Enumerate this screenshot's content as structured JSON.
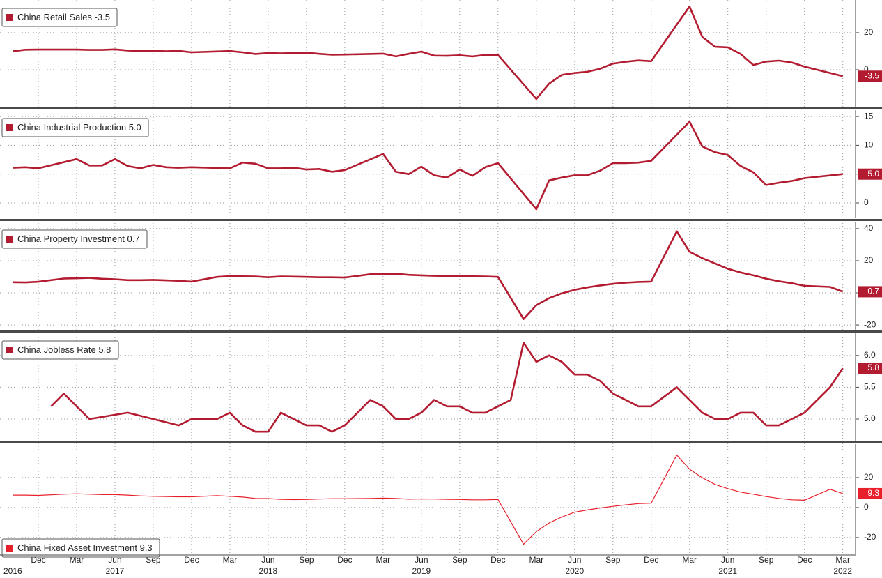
{
  "chart_data": [
    {
      "type": "line",
      "legend": "upper left",
      "grid": true,
      "x": [
        "2016-10",
        "2016-11",
        "2016-12",
        "2017-03",
        "2017-04",
        "2017-05",
        "2017-06",
        "2017-07",
        "2017-08",
        "2017-09",
        "2017-10",
        "2017-11",
        "2017-12",
        "2018-03",
        "2018-04",
        "2018-05",
        "2018-06",
        "2018-07",
        "2018-08",
        "2018-09",
        "2018-10",
        "2018-11",
        "2018-12",
        "2019-03",
        "2019-04",
        "2019-05",
        "2019-06",
        "2019-07",
        "2019-08",
        "2019-09",
        "2019-10",
        "2019-11",
        "2019-12",
        "2020-03",
        "2020-04",
        "2020-05",
        "2020-06",
        "2020-07",
        "2020-08",
        "2020-09",
        "2020-10",
        "2020-11",
        "2020-12",
        "2021-03",
        "2021-04",
        "2021-05",
        "2021-06",
        "2021-07",
        "2021-08",
        "2021-09",
        "2021-10",
        "2021-11",
        "2021-12",
        "2022-03"
      ],
      "series": [
        {
          "name": "China Retail Sales -3.5",
          "color": "#b31b30",
          "values": [
            10.0,
            10.8,
            10.9,
            10.9,
            10.7,
            10.7,
            11.0,
            10.4,
            10.1,
            10.3,
            10.0,
            10.2,
            9.4,
            10.1,
            9.4,
            8.5,
            9.0,
            8.8,
            9.0,
            9.2,
            8.6,
            8.1,
            8.2,
            8.7,
            7.2,
            8.6,
            9.8,
            7.6,
            7.5,
            7.8,
            7.2,
            8.0,
            8.0,
            -15.8,
            -7.5,
            -2.8,
            -1.8,
            -1.1,
            0.5,
            3.3,
            4.3,
            5.0,
            4.6,
            34.2,
            17.7,
            12.4,
            12.1,
            8.5,
            2.5,
            4.4,
            4.9,
            3.9,
            1.7,
            -3.5
          ]
        }
      ],
      "ylim": [
        -20,
        37.7
      ],
      "yticks": [
        0,
        20
      ]
    },
    {
      "type": "line",
      "legend": "upper left",
      "grid": true,
      "x": [
        "2016-10",
        "2016-11",
        "2016-12",
        "2017-03",
        "2017-04",
        "2017-05",
        "2017-06",
        "2017-07",
        "2017-08",
        "2017-09",
        "2017-10",
        "2017-11",
        "2017-12",
        "2018-03",
        "2018-04",
        "2018-05",
        "2018-06",
        "2018-07",
        "2018-08",
        "2018-09",
        "2018-10",
        "2018-11",
        "2018-12",
        "2019-03",
        "2019-04",
        "2019-05",
        "2019-06",
        "2019-07",
        "2019-08",
        "2019-09",
        "2019-10",
        "2019-11",
        "2019-12",
        "2020-03",
        "2020-04",
        "2020-05",
        "2020-06",
        "2020-07",
        "2020-08",
        "2020-09",
        "2020-10",
        "2020-11",
        "2020-12",
        "2021-03",
        "2021-04",
        "2021-05",
        "2021-06",
        "2021-07",
        "2021-08",
        "2021-09",
        "2021-10",
        "2021-11",
        "2021-12",
        "2022-03"
      ],
      "series": [
        {
          "name": "China Industrial Production 5.0",
          "color": "#b31b30",
          "values": [
            6.1,
            6.2,
            6.0,
            7.6,
            6.5,
            6.5,
            7.6,
            6.4,
            6.0,
            6.6,
            6.2,
            6.1,
            6.2,
            6.0,
            7.0,
            6.8,
            6.0,
            6.0,
            6.1,
            5.8,
            5.9,
            5.4,
            5.7,
            8.5,
            5.4,
            5.0,
            6.3,
            4.8,
            4.4,
            5.8,
            4.7,
            6.2,
            6.9,
            -1.1,
            3.9,
            4.4,
            4.8,
            4.8,
            5.6,
            6.9,
            6.9,
            7.0,
            7.3,
            14.1,
            9.8,
            8.8,
            8.3,
            6.4,
            5.3,
            3.1,
            3.5,
            3.8,
            4.3,
            5.0
          ],
          "value_labels": [
            null,
            null,
            null,
            null,
            null,
            null,
            null,
            null,
            null,
            null,
            null,
            null,
            null,
            null,
            null,
            null,
            null,
            null,
            null,
            null,
            null,
            null,
            null,
            null,
            null,
            null,
            null,
            null,
            null,
            null,
            null,
            null,
            null,
            null,
            null,
            null,
            null,
            null,
            null,
            null,
            null,
            null,
            null,
            null,
            null,
            null,
            null,
            null,
            null,
            null,
            null,
            null,
            null,
            "5.0"
          ]
        }
      ],
      "ylim": [
        -2.66,
        16.1
      ],
      "yticks": [
        0,
        5,
        10,
        15
      ]
    },
    {
      "type": "line",
      "legend": "upper left",
      "grid": true,
      "x": [
        "2016-10",
        "2016-11",
        "2016-12",
        "2017-02",
        "2017-03",
        "2017-04",
        "2017-05",
        "2017-06",
        "2017-07",
        "2017-08",
        "2017-09",
        "2017-10",
        "2017-11",
        "2017-12",
        "2018-02",
        "2018-03",
        "2018-04",
        "2018-05",
        "2018-06",
        "2018-07",
        "2018-08",
        "2018-09",
        "2018-10",
        "2018-11",
        "2018-12",
        "2019-02",
        "2019-03",
        "2019-04",
        "2019-05",
        "2019-06",
        "2019-07",
        "2019-08",
        "2019-09",
        "2019-10",
        "2019-11",
        "2019-12",
        "2020-02",
        "2020-03",
        "2020-04",
        "2020-05",
        "2020-06",
        "2020-07",
        "2020-08",
        "2020-09",
        "2020-10",
        "2020-11",
        "2020-12",
        "2021-02",
        "2021-03",
        "2021-04",
        "2021-05",
        "2021-06",
        "2021-07",
        "2021-08",
        "2021-09",
        "2021-10",
        "2021-11",
        "2021-12",
        "2022-02",
        "2022-03"
      ],
      "series": [
        {
          "name": "China Property Investment 0.7",
          "color": "#b31b30",
          "values": [
            6.6,
            6.5,
            6.9,
            8.9,
            9.1,
            9.3,
            8.8,
            8.5,
            7.9,
            7.9,
            8.1,
            7.8,
            7.5,
            7.0,
            9.9,
            10.4,
            10.3,
            10.2,
            9.7,
            10.2,
            10.1,
            9.9,
            9.7,
            9.7,
            9.5,
            11.6,
            11.8,
            11.9,
            11.2,
            10.9,
            10.6,
            10.5,
            10.5,
            10.3,
            10.2,
            9.9,
            -16.3,
            -7.7,
            -3.3,
            -0.3,
            1.9,
            3.4,
            4.6,
            5.6,
            6.3,
            6.8,
            7.0,
            38.3,
            25.6,
            21.6,
            18.3,
            15.0,
            12.7,
            10.9,
            8.8,
            7.2,
            6.0,
            4.4,
            3.7,
            0.7
          ]
        }
      ],
      "ylim": [
        -23,
        44.3
      ],
      "yticks": [
        -20,
        0,
        20,
        40
      ]
    },
    {
      "type": "line",
      "legend": "upper left",
      "grid": true,
      "x": [
        "2017-01",
        "2017-02",
        "2017-04",
        "2017-07",
        "2017-11",
        "2017-12",
        "2018-01",
        "2018-02",
        "2018-03",
        "2018-04",
        "2018-05",
        "2018-06",
        "2018-07",
        "2018-09",
        "2018-10",
        "2018-11",
        "2018-12",
        "2019-01",
        "2019-02",
        "2019-03",
        "2019-04",
        "2019-05",
        "2019-06",
        "2019-07",
        "2019-08",
        "2019-09",
        "2019-10",
        "2019-11",
        "2019-12",
        "2020-01",
        "2020-02",
        "2020-03",
        "2020-04",
        "2020-05",
        "2020-06",
        "2020-07",
        "2020-08",
        "2020-09",
        "2020-10",
        "2020-11",
        "2020-12",
        "2021-02",
        "2021-03",
        "2021-04",
        "2021-05",
        "2021-06",
        "2021-07",
        "2021-08",
        "2021-09",
        "2021-10",
        "2021-11",
        "2021-12",
        "2022-02",
        "2022-03"
      ],
      "series": [
        {
          "name": "China Jobless Rate 5.8",
          "color": "#b31b30",
          "values": [
            5.2,
            5.4,
            5.0,
            5.1,
            4.9,
            5.0,
            5.0,
            5.0,
            5.1,
            4.9,
            4.8,
            4.8,
            5.1,
            4.9,
            4.9,
            4.8,
            4.9,
            5.1,
            5.3,
            5.2,
            5.0,
            5.0,
            5.1,
            5.3,
            5.2,
            5.2,
            5.1,
            5.1,
            5.2,
            5.3,
            6.2,
            5.9,
            6.0,
            5.9,
            5.7,
            5.7,
            5.6,
            5.4,
            5.3,
            5.2,
            5.2,
            5.5,
            5.3,
            5.1,
            5.0,
            5.0,
            5.1,
            5.1,
            4.9,
            4.9,
            5.0,
            5.1,
            5.5,
            5.8
          ]
        }
      ],
      "ylim": [
        4.66,
        6.36
      ],
      "yticks": [
        {
          "value": 5,
          "label": "5.0"
        },
        5.5,
        {
          "value": 6,
          "label": "6.0"
        }
      ]
    },
    {
      "type": "line",
      "legend": "lower left",
      "grid": true,
      "x": [
        "2016-10",
        "2016-11",
        "2016-12",
        "2017-02",
        "2017-03",
        "2017-04",
        "2017-05",
        "2017-06",
        "2017-07",
        "2017-08",
        "2017-09",
        "2017-10",
        "2017-11",
        "2017-12",
        "2018-02",
        "2018-03",
        "2018-04",
        "2018-05",
        "2018-06",
        "2018-07",
        "2018-08",
        "2018-09",
        "2018-10",
        "2018-11",
        "2018-12",
        "2019-02",
        "2019-03",
        "2019-04",
        "2019-05",
        "2019-06",
        "2019-07",
        "2019-08",
        "2019-09",
        "2019-10",
        "2019-11",
        "2019-12",
        "2020-02",
        "2020-03",
        "2020-04",
        "2020-05",
        "2020-06",
        "2020-07",
        "2020-08",
        "2020-09",
        "2020-10",
        "2020-11",
        "2020-12",
        "2021-02",
        "2021-03",
        "2021-04",
        "2021-05",
        "2021-06",
        "2021-07",
        "2021-08",
        "2021-09",
        "2021-10",
        "2021-11",
        "2021-12",
        "2022-02",
        "2022-03"
      ],
      "series": [
        {
          "name": "China Fixed Asset Investment 9.3",
          "color": "#e8202c",
          "values": [
            8.3,
            8.3,
            8.1,
            8.9,
            9.2,
            8.9,
            8.6,
            8.6,
            8.3,
            7.8,
            7.5,
            7.3,
            7.2,
            7.2,
            7.9,
            7.5,
            7.0,
            6.1,
            6.0,
            5.5,
            5.3,
            5.4,
            5.7,
            5.9,
            5.9,
            6.1,
            6.3,
            6.1,
            5.6,
            5.8,
            5.7,
            5.5,
            5.4,
            5.2,
            5.2,
            5.4,
            -24.5,
            -16.1,
            -10.3,
            -6.3,
            -3.1,
            -1.6,
            -0.3,
            0.8,
            1.8,
            2.6,
            2.9,
            35.0,
            25.6,
            19.9,
            15.4,
            12.6,
            10.3,
            8.9,
            7.3,
            6.1,
            5.2,
            4.9,
            12.2,
            9.3
          ]
        }
      ],
      "ylim": [
        -31.2,
        42.3
      ],
      "yticks": [
        -20,
        0,
        20
      ],
      "xlim": [
        "2016-09",
        "2022-04"
      ],
      "xticks": [
        {
          "value": "2016-12",
          "label": "Dec"
        },
        {
          "value": "2017-03",
          "label": "Mar"
        },
        {
          "value": "2017-06",
          "label": "Jun"
        },
        {
          "value": "2017-09",
          "label": "Sep"
        },
        {
          "value": "2017-12",
          "label": "Dec"
        },
        {
          "value": "2018-03",
          "label": "Mar"
        },
        {
          "value": "2018-06",
          "label": "Jun"
        },
        {
          "value": "2018-09",
          "label": "Sep"
        },
        {
          "value": "2018-12",
          "label": "Dec"
        },
        {
          "value": "2019-03",
          "label": "Mar"
        },
        {
          "value": "2019-06",
          "label": "Jun"
        },
        {
          "value": "2019-09",
          "label": "Sep"
        },
        {
          "value": "2019-12",
          "label": "Dec"
        },
        {
          "value": "2020-03",
          "label": "Mar"
        },
        {
          "value": "2020-06",
          "label": "Jun"
        },
        {
          "value": "2020-09",
          "label": "Sep"
        },
        {
          "value": "2020-12",
          "label": "Dec"
        },
        {
          "value": "2021-03",
          "label": "Mar"
        },
        {
          "value": "2021-06",
          "label": "Jun"
        },
        {
          "value": "2021-09",
          "label": "Sep"
        },
        {
          "value": "2021-12",
          "label": "Dec"
        },
        {
          "value": "2022-03",
          "label": "Mar"
        }
      ],
      "year_ticks": [
        {
          "value": "2016-10",
          "label": "2016"
        },
        {
          "value": "2017-06",
          "label": "2017"
        },
        {
          "value": "2018-06",
          "label": "2018"
        },
        {
          "value": "2019-06",
          "label": "2019"
        },
        {
          "value": "2020-06",
          "label": "2020"
        },
        {
          "value": "2021-06",
          "label": "2021"
        },
        {
          "value": "2022-03",
          "label": "2022"
        }
      ]
    }
  ]
}
